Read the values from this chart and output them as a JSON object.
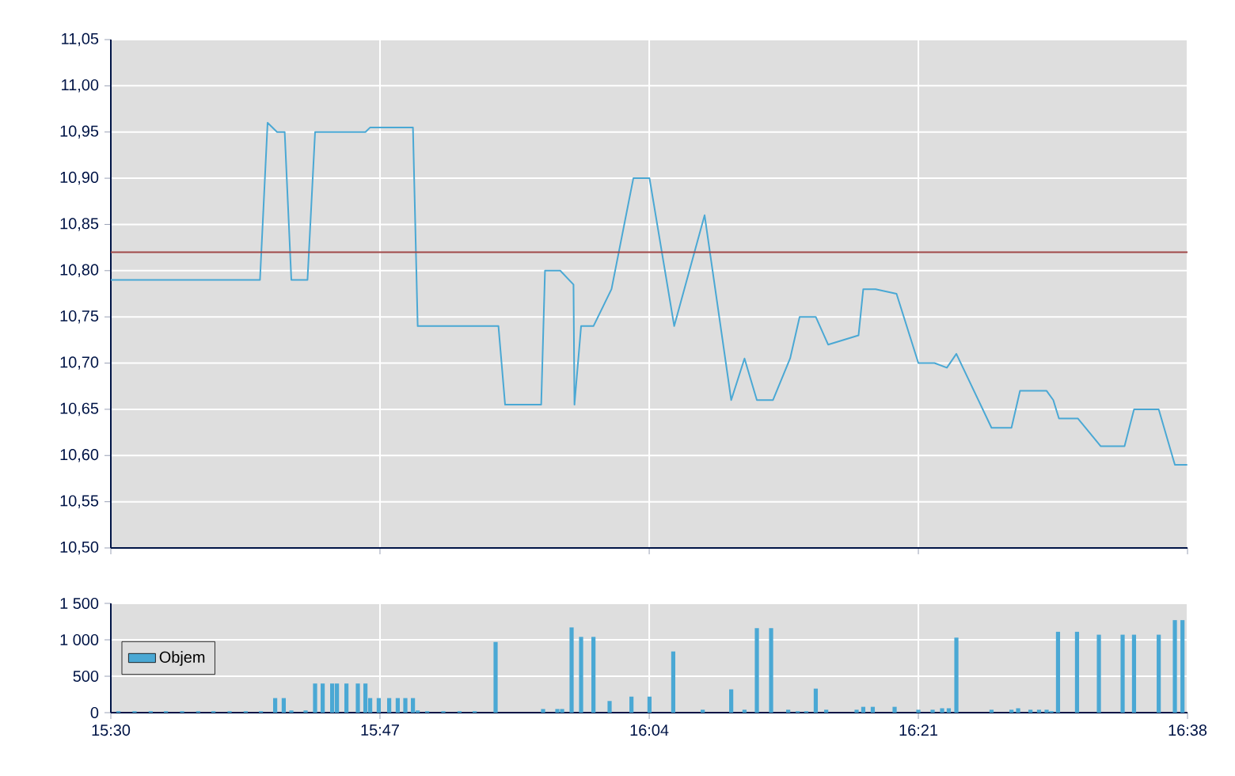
{
  "chart_data": [
    {
      "type": "line",
      "xlim": [
        15.5,
        16.6333
      ],
      "xticks": [
        {
          "value": 15.5,
          "label": null
        },
        {
          "value": 15.7833,
          "label": null
        },
        {
          "value": 16.0667,
          "label": null
        },
        {
          "value": 16.35,
          "label": null
        },
        {
          "value": 16.6333,
          "label": null
        }
      ],
      "tick_labels": "y",
      "grid": true,
      "ylim": [
        10.5,
        11.05
      ],
      "yticks": [
        {
          "value": 10.5,
          "label": "10,50"
        },
        {
          "value": 10.55,
          "label": "10,55"
        },
        {
          "value": 10.6,
          "label": "10,60"
        },
        {
          "value": 10.65,
          "label": "10,65"
        },
        {
          "value": 10.7,
          "label": "10,70"
        },
        {
          "value": 10.75,
          "label": "10,75"
        },
        {
          "value": 10.8,
          "label": "10,80"
        },
        {
          "value": 10.85,
          "label": "10,85"
        },
        {
          "value": 10.9,
          "label": "10,90"
        },
        {
          "value": 10.95,
          "label": "10,95"
        },
        {
          "value": 11.0,
          "label": "11,00"
        },
        {
          "value": 11.05,
          "label": "11,05"
        }
      ],
      "ref_lines": [
        {
          "axis": "y",
          "value": 10.82,
          "color": "#a04848"
        }
      ],
      "series": [
        {
          "color": "#4aa8d4",
          "x": [
            15.5,
            15.657,
            15.665,
            15.675,
            15.683,
            15.69,
            15.707,
            15.715,
            15.768,
            15.773,
            15.818,
            15.823,
            15.908,
            15.915,
            15.953,
            15.957,
            15.973,
            15.987,
            15.988,
            15.995,
            16.008,
            16.027,
            16.05,
            16.067,
            16.093,
            16.125,
            16.153,
            16.167,
            16.18,
            16.197,
            16.215,
            16.225,
            16.242,
            16.255,
            16.287,
            16.292,
            16.305,
            16.327,
            16.35,
            16.367,
            16.38,
            16.39,
            16.427,
            16.448,
            16.457,
            16.485,
            16.492,
            16.498,
            16.518,
            16.542,
            16.567,
            16.577,
            16.603,
            16.62,
            16.633
          ],
          "values": [
            10.79,
            10.79,
            10.96,
            10.95,
            10.95,
            10.79,
            10.79,
            10.95,
            10.95,
            10.955,
            10.955,
            10.74,
            10.74,
            10.655,
            10.655,
            10.8,
            10.8,
            10.785,
            10.655,
            10.74,
            10.74,
            10.78,
            10.9,
            10.9,
            10.74,
            10.86,
            10.66,
            10.705,
            10.66,
            10.66,
            10.705,
            10.75,
            10.75,
            10.72,
            10.73,
            10.78,
            10.78,
            10.775,
            10.7,
            10.7,
            10.695,
            10.71,
            10.63,
            10.63,
            10.67,
            10.67,
            10.66,
            10.64,
            10.64,
            10.61,
            10.61,
            10.65,
            10.65,
            10.59,
            10.59
          ]
        }
      ]
    },
    {
      "type": "bar",
      "xlim": [
        15.5,
        16.6333
      ],
      "xticks": [
        {
          "value": 15.5,
          "label": "15:30"
        },
        {
          "value": 15.7833,
          "label": "15:47"
        },
        {
          "value": 16.0667,
          "label": "16:04"
        },
        {
          "value": 16.35,
          "label": "16:21"
        },
        {
          "value": 16.6333,
          "label": "16:38"
        }
      ],
      "grid": true,
      "ylim": [
        0,
        1500
      ],
      "yticks": [
        0,
        500,
        {
          "value": 1000,
          "label": "1 000"
        },
        {
          "value": 1500,
          "label": "1 500"
        }
      ],
      "legend": "left",
      "series": [
        {
          "name": "Objem",
          "color": "#4aa8d4",
          "x": [
            15.508,
            15.525,
            15.542,
            15.558,
            15.575,
            15.592,
            15.608,
            15.625,
            15.642,
            15.658,
            15.673,
            15.682,
            15.69,
            15.705,
            15.715,
            15.723,
            15.733,
            15.738,
            15.748,
            15.76,
            15.768,
            15.773,
            15.782,
            15.793,
            15.802,
            15.81,
            15.818,
            15.823,
            15.833,
            15.85,
            15.867,
            15.883,
            15.905,
            15.955,
            15.97,
            15.975,
            15.985,
            15.995,
            16.008,
            16.025,
            16.048,
            16.067,
            16.092,
            16.123,
            16.153,
            16.167,
            16.18,
            16.195,
            16.213,
            16.223,
            16.232,
            16.242,
            16.253,
            16.285,
            16.292,
            16.302,
            16.325,
            16.35,
            16.365,
            16.375,
            16.382,
            16.39,
            16.427,
            16.448,
            16.455,
            16.468,
            16.477,
            16.485,
            16.49,
            16.497,
            16.517,
            16.54,
            16.565,
            16.577,
            16.603,
            16.62,
            16.628
          ],
          "values": [
            20,
            20,
            20,
            20,
            20,
            20,
            20,
            20,
            20,
            20,
            200,
            200,
            30,
            30,
            400,
            400,
            400,
            400,
            400,
            400,
            400,
            200,
            200,
            200,
            200,
            200,
            200,
            30,
            20,
            20,
            20,
            20,
            970,
            50,
            50,
            50,
            1170,
            1040,
            1040,
            160,
            220,
            220,
            840,
            40,
            320,
            40,
            1160,
            1160,
            40,
            20,
            20,
            330,
            40,
            40,
            80,
            80,
            80,
            40,
            40,
            60,
            60,
            1030,
            40,
            40,
            60,
            40,
            40,
            40,
            20,
            1110,
            1110,
            1070,
            1070,
            1070,
            1070,
            1270,
            1270
          ]
        }
      ]
    }
  ]
}
